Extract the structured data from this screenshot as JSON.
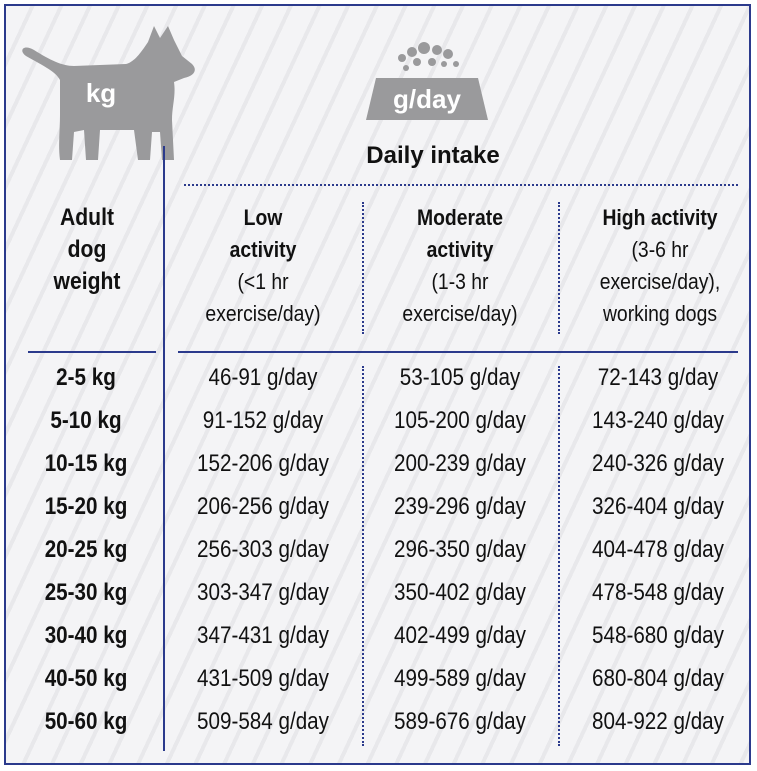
{
  "icons": {
    "dog": {
      "name": "dog-icon",
      "label": "kg",
      "color": "#9a9a9c"
    },
    "bowl": {
      "name": "food-bowl-icon",
      "label": "g/day",
      "color": "#9a9a9c"
    }
  },
  "colors": {
    "accent": "#2b3a8c",
    "background": "#f4f4f6"
  },
  "header": {
    "daily_intake": "Daily intake"
  },
  "weight_header": [
    "Adult",
    "dog",
    "weight"
  ],
  "columns": [
    {
      "title": [
        "Low",
        "activity"
      ],
      "detail": [
        "(<1 hr",
        "exercise/day)"
      ]
    },
    {
      "title": [
        "Moderate",
        "activity"
      ],
      "detail": [
        "(1-3 hr",
        "exercise/day)"
      ]
    },
    {
      "title": [
        "High activity"
      ],
      "detail": [
        "(3-6 hr",
        "exercise/day),",
        "working dogs"
      ]
    }
  ],
  "rows": [
    {
      "weight": "2-5 kg",
      "low": "46-91 g/day",
      "moderate": "53-105 g/day",
      "high": "72-143 g/day"
    },
    {
      "weight": "5-10 kg",
      "low": "91-152 g/day",
      "moderate": "105-200 g/day",
      "high": "143-240 g/day"
    },
    {
      "weight": "10-15 kg",
      "low": "152-206 g/day",
      "moderate": "200-239 g/day",
      "high": "240-326 g/day"
    },
    {
      "weight": "15-20 kg",
      "low": "206-256 g/day",
      "moderate": "239-296 g/day",
      "high": "326-404 g/day"
    },
    {
      "weight": "20-25 kg",
      "low": "256-303 g/day",
      "moderate": "296-350 g/day",
      "high": "404-478 g/day"
    },
    {
      "weight": "25-30 kg",
      "low": "303-347 g/day",
      "moderate": "350-402 g/day",
      "high": "478-548 g/day"
    },
    {
      "weight": "30-40 kg",
      "low": "347-431 g/day",
      "moderate": "402-499 g/day",
      "high": "548-680 g/day"
    },
    {
      "weight": "40-50 kg",
      "low": "431-509 g/day",
      "moderate": "499-589 g/day",
      "high": "680-804 g/day"
    },
    {
      "weight": "50-60 kg",
      "low": "509-584 g/day",
      "moderate": "589-676 g/day",
      "high": "804-922 g/day"
    }
  ]
}
